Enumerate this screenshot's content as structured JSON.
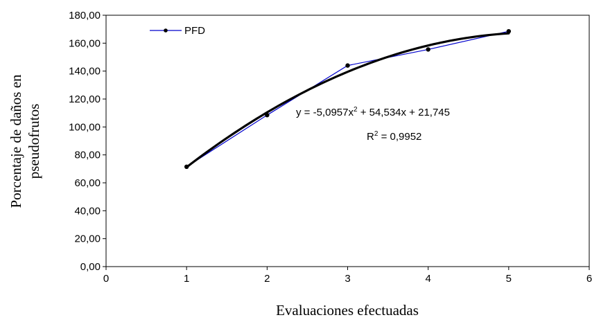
{
  "chart_data": {
    "type": "line",
    "title": "",
    "xlabel": "Evaluaciones efectuadas",
    "ylabel_lines": [
      "Porcentaje de daños en",
      "pseudofrutos"
    ],
    "xlim": [
      0,
      6
    ],
    "ylim": [
      0,
      180
    ],
    "x_ticks": [
      "0",
      "1",
      "2",
      "3",
      "4",
      "5",
      "6"
    ],
    "y_ticks": [
      "0,00",
      "20,00",
      "40,00",
      "60,00",
      "80,00",
      "100,00",
      "120,00",
      "140,00",
      "160,00",
      "180,00"
    ],
    "grid": false,
    "legend_position": "top-left",
    "series": [
      {
        "name": "PFD",
        "color": "#0000cc",
        "x": [
          1,
          2,
          3,
          4,
          5
        ],
        "values": [
          71.5,
          108.5,
          144,
          155.5,
          168.5
        ]
      }
    ],
    "trendline": {
      "type": "polynomial-2",
      "coefficients": [
        -5.0957,
        54.534,
        21.745
      ],
      "color": "#000000",
      "equation": {
        "prefix": "y = -5,0957x",
        "exp": "2",
        "suffix": " + 54,534x + 21,745"
      },
      "r2": {
        "prefix": "R",
        "exp": "2",
        "suffix": " = 0,9952"
      }
    }
  }
}
